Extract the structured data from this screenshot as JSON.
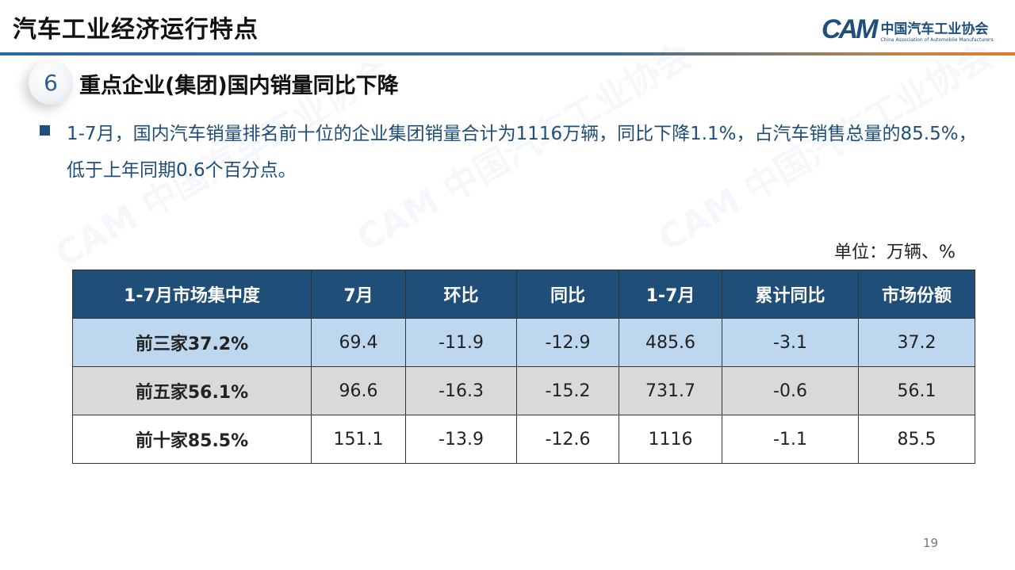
{
  "header": {
    "title": "汽车工业经济运行特点",
    "logo_mark": "CAM",
    "logo_cn": "中国汽车工业协会",
    "logo_en": "China Association of Automobile Manufacturers"
  },
  "section": {
    "number": "6",
    "title": "重点企业(集团)国内销量同比下降"
  },
  "bullet": "1-7月，国内汽车销量排名前十位的企业集团销量合计为1116万辆，同比下降1.1%，占汽车销售总量的85.5%，低于上年同期0.6个百分点。",
  "unit": "单位：万辆、%",
  "table": {
    "headers": [
      "1-7月市场集中度",
      "7月",
      "环比",
      "同比",
      "1-7月",
      "累计同比",
      "市场份额"
    ],
    "rows": [
      [
        "前三家37.2%",
        "69.4",
        "-11.9",
        "-12.9",
        "485.6",
        "-3.1",
        "37.2"
      ],
      [
        "前五家56.1%",
        "96.6",
        "-16.3",
        "-15.2",
        "731.7",
        "-0.6",
        "56.1"
      ],
      [
        "前十家85.5%",
        "151.1",
        "-13.9",
        "-12.6",
        "1116",
        "-1.1",
        "85.5"
      ]
    ]
  },
  "page_number": "19",
  "colors": {
    "header_blue": "#1f4e79",
    "row1": "#bdd7ee",
    "row2": "#d9d9d9",
    "accent_orange": "#e07b2c"
  }
}
